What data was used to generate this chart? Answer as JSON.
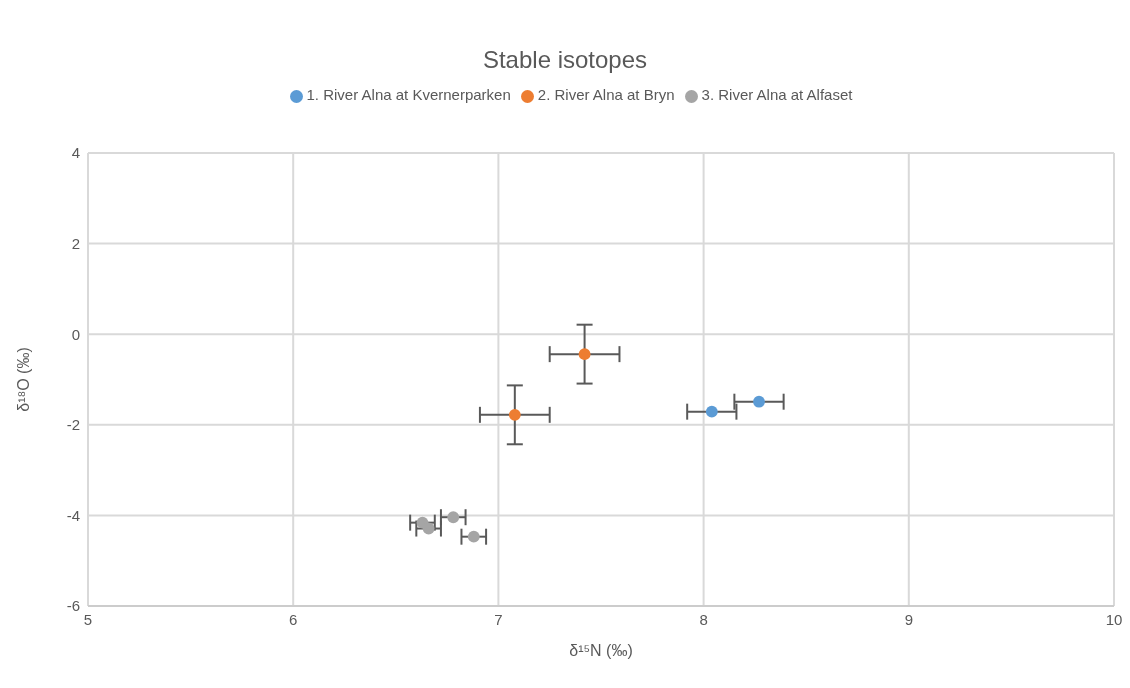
{
  "chart_data": {
    "type": "scatter",
    "title": "Stable isotopes",
    "xlabel": "δ¹⁵N (‰)",
    "ylabel": "δ¹⁸O (‰)",
    "xlim": [
      5,
      10
    ],
    "xticks": [
      5,
      6,
      7,
      8,
      9,
      10
    ],
    "ylim": [
      -6,
      4
    ],
    "yticks": [
      -6,
      -4,
      -2,
      0,
      2,
      4
    ],
    "grid": true,
    "legend": "top",
    "marker": "circle",
    "series": [
      {
        "name": "1. River Alna at Kvernerparken",
        "color": "#5b9bd5",
        "x": [
          8.04,
          8.27
        ],
        "values": [
          -1.71,
          -1.49
        ],
        "xerrors": [
          0.12,
          0.12
        ]
      },
      {
        "name": "2. River Alna at Bryn",
        "color": "#ed7d31",
        "x": [
          7.08,
          7.42
        ],
        "values": [
          -1.78,
          -0.44
        ],
        "xerrors": [
          0.17,
          0.17
        ],
        "errors": [
          0.65,
          0.65
        ]
      },
      {
        "name": "3. River Alna at Alfaset",
        "color": "#a5a5a5",
        "x": [
          6.63,
          6.66,
          6.78,
          6.88
        ],
        "values": [
          -4.16,
          -4.29,
          -4.04,
          -4.47
        ],
        "xerrors": [
          0.06,
          0.06,
          0.06,
          0.06
        ]
      }
    ]
  }
}
